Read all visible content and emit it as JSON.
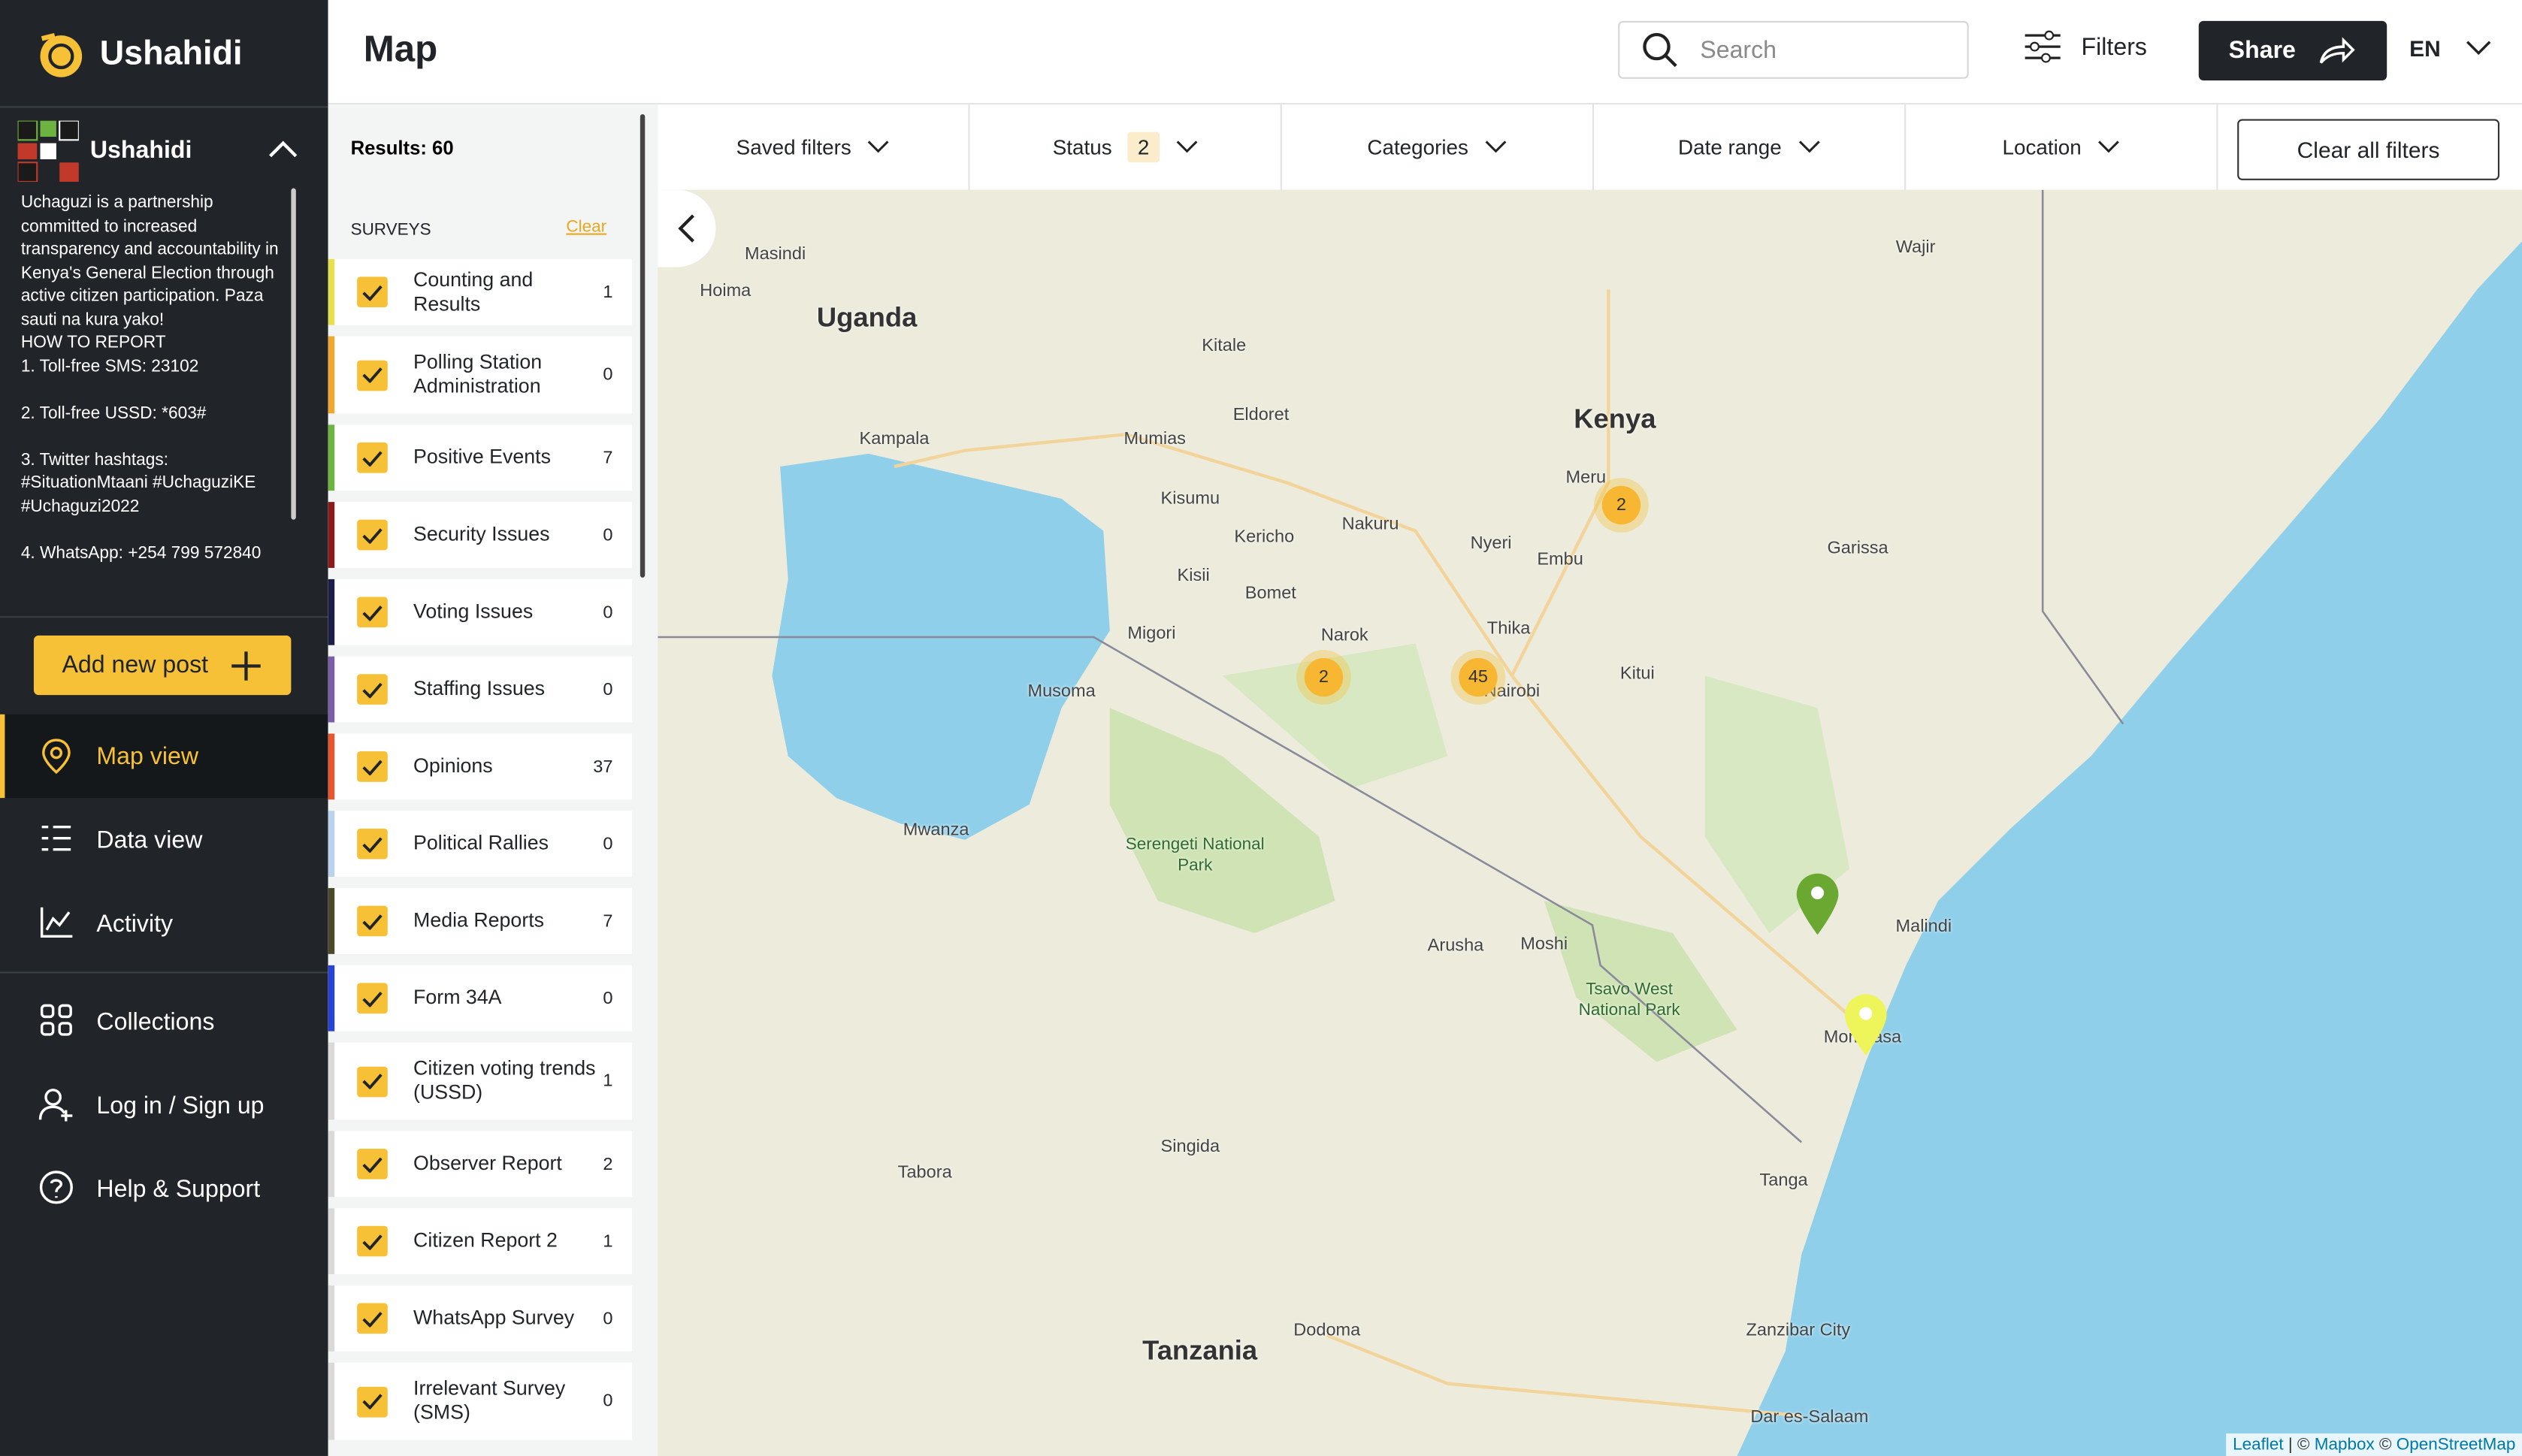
{
  "sidebar": {
    "brand": "Ushahidi",
    "deployment": {
      "name": "Ushahidi",
      "description": [
        "Uchaguzi is a partnership committed to increased transparency and accountability in Kenya's General Election through active citizen participation. Paza sauti na kura yako!",
        "HOW TO REPORT",
        "1. Toll-free SMS: 23102",
        "2. Toll-free USSD: *603#",
        "3. Twitter hashtags: #SituationMtaani #UchaguziKE #Uchaguzi2022",
        "4. WhatsApp: +254 799 572840"
      ]
    },
    "add_post": "Add new post",
    "nav_main": [
      "Map view",
      "Data view",
      "Activity"
    ],
    "nav_secondary": [
      "Collections",
      "Log in / Sign up",
      "Help & Support"
    ]
  },
  "header": {
    "title": "Map",
    "search_placeholder": "Search",
    "filters": "Filters",
    "share": "Share",
    "language": "EN"
  },
  "filter_bar": {
    "saved_filters": "Saved filters",
    "status": "Status",
    "status_count": 2,
    "categories": "Categories",
    "date_range": "Date range",
    "location": "Location",
    "clear_all": "Clear all filters"
  },
  "surveys_panel": {
    "results": "Results: 60",
    "heading": "SURVEYS",
    "clear": "Clear",
    "surveys": [
      {
        "name": "Counting and Results",
        "count": 1,
        "color": "#e6e04a"
      },
      {
        "name": "Polling Station Administration",
        "count": 0,
        "color": "#f0a830"
      },
      {
        "name": "Positive Events",
        "count": 7,
        "color": "#6cb33f"
      },
      {
        "name": "Security Issues",
        "count": 0,
        "color": "#8b1a1a"
      },
      {
        "name": "Voting Issues",
        "count": 0,
        "color": "#1d1d4a"
      },
      {
        "name": "Staffing Issues",
        "count": 0,
        "color": "#7b5ea7"
      },
      {
        "name": "Opinions",
        "count": 37,
        "color": "#e8552f"
      },
      {
        "name": "Political Rallies",
        "count": 0,
        "color": "#b9d3ef"
      },
      {
        "name": "Media Reports",
        "count": 7,
        "color": "#4a4a2a"
      },
      {
        "name": "Form 34A",
        "count": 0,
        "color": "#2742d6"
      },
      {
        "name": "Citizen voting trends (USSD)",
        "count": 1,
        "color": "#d9d9d9"
      },
      {
        "name": "Observer Report",
        "count": 2,
        "color": "#d9d9d9"
      },
      {
        "name": "Citizen Report 2",
        "count": 1,
        "color": "#d9d9d9"
      },
      {
        "name": "WhatsApp Survey",
        "count": 0,
        "color": "#d9d9d9"
      },
      {
        "name": "Irrelevant Survey (SMS)",
        "count": 0,
        "color": "#d9d9d9"
      }
    ]
  },
  "map": {
    "labels": [
      "Uganda",
      "Kenya",
      "Tanzania",
      "Kampala",
      "Nairobi",
      "Mombasa",
      "Masindi",
      "Hoima",
      "Kitale",
      "Eldoret",
      "Mumias",
      "Kisumu",
      "Kericho",
      "Nakuru",
      "Nyeri",
      "Meru",
      "Embu",
      "Thika",
      "Narok",
      "Bomet",
      "Kisii",
      "Migori",
      "Musoma",
      "Mwanza",
      "Arusha",
      "Moshi",
      "Tanga",
      "Malindi",
      "Garissa",
      "Kitui",
      "Wajir",
      "Dodoma",
      "Tabora",
      "Singida",
      "Zanzibar City",
      "Dar es-Salaam",
      "Serengeti National Park",
      "Tsavo West National Park"
    ],
    "clusters": [
      2,
      45,
      2
    ],
    "attribution": [
      "Leaflet",
      "Mapbox",
      "OpenStreetMap"
    ]
  }
}
